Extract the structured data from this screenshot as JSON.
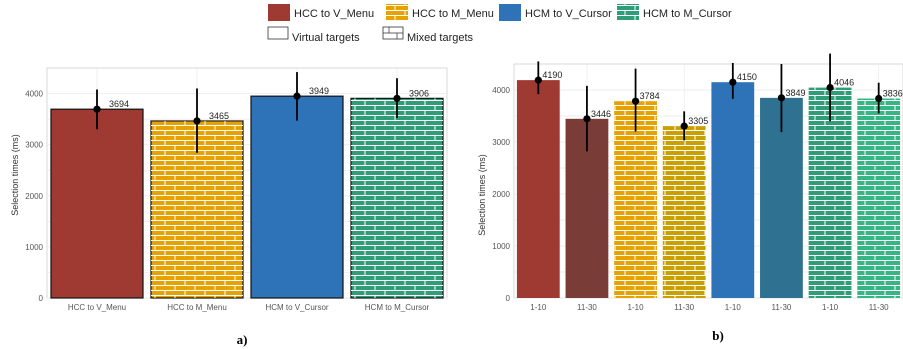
{
  "legend": {
    "conditions": [
      {
        "label": "HCC to V_Menu",
        "color": "#9e3a32",
        "pattern": "none"
      },
      {
        "label": "HCC to M_Menu",
        "color": "#e6a200",
        "pattern": "brick"
      },
      {
        "label": "HCM to V_Cursor",
        "color": "#2e73b8",
        "pattern": "none"
      },
      {
        "label": "HCM to M_Cursor",
        "color": "#2f9e78",
        "pattern": "brick"
      }
    ],
    "targets": [
      {
        "label": "Virtual targets",
        "pattern": "none"
      },
      {
        "label": "Mixed targets",
        "pattern": "brick"
      }
    ]
  },
  "chart_data": [
    {
      "type": "bar",
      "panel_label": "a)",
      "ylabel": "Selection times (ms)",
      "ylim": [
        0,
        4500
      ],
      "yticks": [
        0,
        1000,
        2000,
        3000,
        4000
      ],
      "grid": true,
      "categories": [
        "HCC to V_Menu",
        "HCC to M_Menu",
        "HCM to V_Cursor",
        "HCM to M_Cursor"
      ],
      "values": [
        3694,
        3465,
        3949,
        3906
      ],
      "error_low": [
        3300,
        2840,
        3470,
        3520
      ],
      "error_high": [
        4080,
        4100,
        4420,
        4300
      ],
      "colors": [
        "#9e3a32",
        "#e6a200",
        "#2e73b8",
        "#2f9e78"
      ],
      "patterns": [
        "none",
        "brick",
        "none",
        "brick"
      ],
      "value_labels": [
        "3694",
        "3465",
        "3949",
        "3906"
      ]
    },
    {
      "type": "bar",
      "panel_label": "b)",
      "ylabel": "Selection times (ms)",
      "ylim": [
        0,
        4500
      ],
      "yticks": [
        0,
        1000,
        2000,
        3000,
        4000
      ],
      "grid": true,
      "categories": [
        "1-10",
        "11-30",
        "1-10",
        "11-30",
        "1-10",
        "11-30",
        "1-10",
        "11-30"
      ],
      "values": [
        4190,
        3446,
        3784,
        3305,
        4150,
        3849,
        4046,
        3836
      ],
      "error_low": [
        3920,
        2820,
        3200,
        3030,
        3830,
        3190,
        3400,
        3550
      ],
      "error_high": [
        4550,
        4080,
        4410,
        3590,
        4520,
        4500,
        4700,
        4140
      ],
      "colors": [
        "#9e3a32",
        "#7a3c36",
        "#e6a200",
        "#c9a000",
        "#2e73b8",
        "#2f7190",
        "#2f9e78",
        "#36b585"
      ],
      "patterns": [
        "none",
        "none",
        "brick",
        "brick",
        "none",
        "none",
        "brick",
        "brick"
      ],
      "value_labels": [
        "4190",
        "3446",
        "3784",
        "3305",
        "4150",
        "3849",
        "4046",
        "3836"
      ]
    }
  ]
}
